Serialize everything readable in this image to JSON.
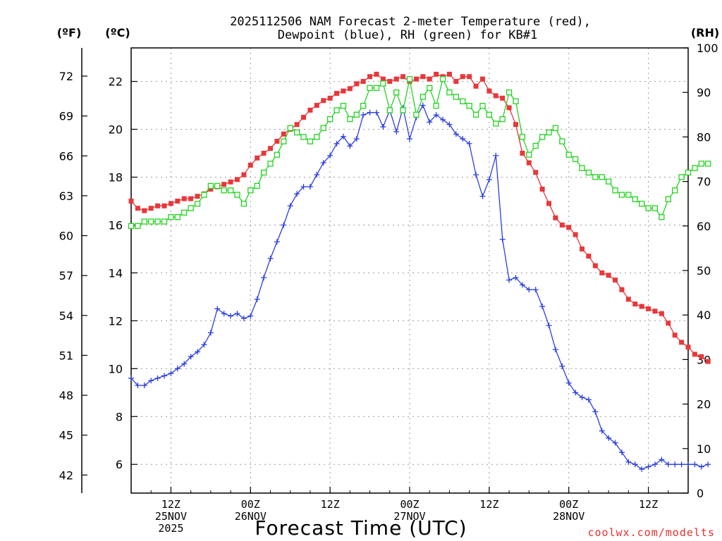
{
  "page": {
    "title_line1": "2025112506 NAM Forecast 2-meter Temperature (red),",
    "title_line2": "Dewpoint (blue), RH (green) for KB#1",
    "label_f": "(ºF)",
    "label_c": "(ºC)",
    "label_rh": "(RH)",
    "x_title": "Forecast Time (UTC)",
    "credit": "coolwx.com/modelts"
  },
  "chart_data": {
    "type": "line",
    "title": "2025112506 NAM Forecast 2-meter Temperature (red), Dewpoint (blue), RH (green) for KB#1",
    "xlabel": "Forecast Time (UTC)",
    "x_unit": "forecast hour from 2025-11-25 06Z",
    "x_range": [
      0,
      84
    ],
    "y_left_c": {
      "label": "(ºC)",
      "ylim": [
        4.8,
        23.4
      ],
      "ticks": [
        6,
        8,
        10,
        12,
        14,
        16,
        18,
        20,
        22
      ]
    },
    "y_left_f": {
      "label": "(ºF)",
      "ticks": [
        42,
        45,
        48,
        51,
        54,
        57,
        60,
        63,
        66,
        69,
        72
      ]
    },
    "y_right_rh": {
      "label": "(RH)",
      "ylim": [
        0,
        100
      ],
      "ticks": [
        0,
        10,
        20,
        30,
        40,
        50,
        60,
        70,
        80,
        90,
        100
      ]
    },
    "x_ticks": [
      {
        "x": 6,
        "lines": [
          "12Z",
          "25NOV",
          "2025"
        ]
      },
      {
        "x": 18,
        "lines": [
          "00Z",
          "26NOV"
        ]
      },
      {
        "x": 30,
        "lines": [
          "12Z"
        ]
      },
      {
        "x": 42,
        "lines": [
          "00Z",
          "27NOV"
        ]
      },
      {
        "x": 54,
        "lines": [
          "12Z"
        ]
      },
      {
        "x": 66,
        "lines": [
          "00Z",
          "28NOV"
        ]
      },
      {
        "x": 78,
        "lines": [
          "12Z"
        ]
      }
    ],
    "grid": true,
    "series": [
      {
        "key": "temperature",
        "axis": "c",
        "color": "#e8373a",
        "marker": "filled-square",
        "values": [
          17.0,
          16.7,
          16.6,
          16.7,
          16.8,
          16.8,
          16.9,
          17.0,
          17.1,
          17.1,
          17.2,
          17.3,
          17.5,
          17.6,
          17.7,
          17.8,
          17.9,
          18.1,
          18.5,
          18.8,
          19.0,
          19.2,
          19.5,
          19.8,
          20.0,
          20.2,
          20.5,
          20.8,
          21.0,
          21.2,
          21.3,
          21.5,
          21.6,
          21.7,
          21.9,
          22.0,
          22.2,
          22.3,
          22.1,
          22.0,
          22.1,
          22.2,
          22.0,
          22.1,
          22.2,
          22.1,
          22.3,
          22.2,
          22.3,
          22.0,
          22.2,
          22.2,
          21.8,
          22.1,
          21.6,
          21.4,
          21.3,
          20.9,
          20.2,
          19.0,
          18.6,
          18.2,
          17.5,
          16.9,
          16.3,
          16.0,
          15.9,
          15.6,
          15.0,
          14.7,
          14.3,
          14.0,
          13.9,
          13.7,
          13.3,
          12.9,
          12.7,
          12.6,
          12.5,
          12.4,
          12.3,
          11.9,
          11.4,
          11.1,
          10.9,
          10.6,
          10.5,
          10.3
        ]
      },
      {
        "key": "dewpoint",
        "axis": "c",
        "color": "#2b3fe0",
        "marker": "plus",
        "values": [
          9.6,
          9.3,
          9.3,
          9.5,
          9.6,
          9.7,
          9.8,
          10.0,
          10.2,
          10.5,
          10.7,
          11.0,
          11.5,
          12.5,
          12.3,
          12.2,
          12.3,
          12.1,
          12.2,
          12.9,
          13.8,
          14.6,
          15.3,
          16.0,
          16.8,
          17.3,
          17.6,
          17.6,
          18.1,
          18.6,
          18.9,
          19.4,
          19.7,
          19.3,
          19.6,
          20.6,
          20.7,
          20.7,
          20.1,
          20.8,
          19.9,
          20.9,
          19.6,
          20.5,
          21.0,
          20.3,
          20.6,
          20.4,
          20.2,
          19.8,
          19.6,
          19.4,
          18.1,
          17.2,
          17.9,
          18.9,
          15.4,
          13.7,
          13.8,
          13.5,
          13.3,
          13.3,
          12.6,
          11.8,
          10.8,
          10.1,
          9.4,
          9.0,
          8.8,
          8.7,
          8.2,
          7.4,
          7.1,
          6.9,
          6.5,
          6.1,
          6.0,
          5.8,
          5.9,
          6.0,
          6.2,
          6.0,
          6.0,
          6.0,
          6.0,
          6.0,
          5.9,
          6.0
        ]
      },
      {
        "key": "rh",
        "axis": "rh",
        "color": "#22d41f",
        "marker": "open-square",
        "values": [
          60,
          60,
          61,
          61,
          61,
          61,
          62,
          62,
          63,
          64,
          65,
          67,
          69,
          69,
          68,
          68,
          67,
          65,
          68,
          69,
          72,
          74,
          76,
          79,
          82,
          81,
          80,
          79,
          80,
          82,
          84,
          86,
          87,
          84,
          85,
          87,
          91,
          91,
          92,
          86,
          90,
          86,
          93,
          85,
          89,
          91,
          87,
          93,
          90,
          89,
          88,
          87,
          85,
          87,
          85,
          83,
          84,
          90,
          88,
          80,
          76,
          78,
          80,
          81,
          82,
          79,
          76,
          75,
          73,
          72,
          71,
          71,
          70,
          68,
          67,
          67,
          66,
          65,
          64,
          64,
          62,
          66,
          68,
          71,
          72,
          73,
          74,
          74
        ]
      }
    ]
  }
}
